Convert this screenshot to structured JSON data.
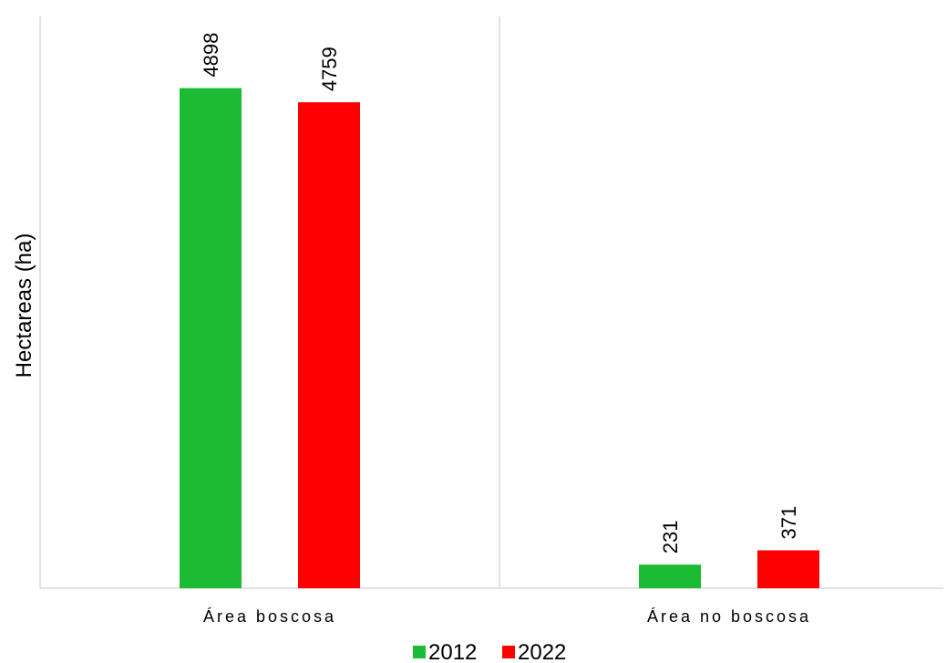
{
  "chart_data": {
    "type": "bar",
    "title": "",
    "xlabel": "",
    "ylabel": "Hectareas (ha)",
    "categories": [
      "Área boscosa",
      "Área no boscosa"
    ],
    "series": [
      {
        "name": "2012",
        "color": "#1cbb34",
        "values": [
          4898,
          231
        ]
      },
      {
        "name": "2022",
        "color": "#ff0000",
        "values": [
          4759,
          371
        ]
      }
    ],
    "ylim": [
      0,
      5600
    ],
    "grid": false,
    "category_separators": true,
    "legend_position": "bottom-center",
    "data_labels": true
  }
}
